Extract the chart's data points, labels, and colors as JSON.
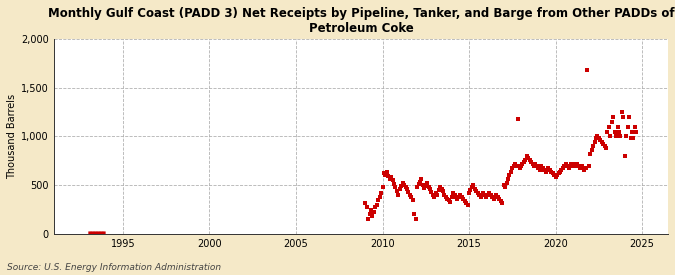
{
  "title": "Monthly Gulf Coast (PADD 3) Net Receipts by Pipeline, Tanker, and Barge from Other PADDs of\nPetroleum Coke",
  "ylabel": "Thousand Barrels",
  "source": "Source: U.S. Energy Information Administration",
  "fig_background_color": "#f5e9c8",
  "plot_background_color": "#ffffff",
  "dot_color": "#cc0000",
  "ylim": [
    0,
    2000
  ],
  "yticks": [
    0,
    500,
    1000,
    1500,
    2000
  ],
  "ytick_labels": [
    "0",
    "500",
    "1,000",
    "1,500",
    "2,000"
  ],
  "xlim_start": 1991.0,
  "xlim_end": 2026.5,
  "xticks": [
    1995,
    2000,
    2005,
    2010,
    2015,
    2020,
    2025
  ],
  "early_data": [
    [
      1993.0,
      8
    ],
    [
      1993.08,
      8
    ],
    [
      1993.17,
      9
    ],
    [
      1993.25,
      8
    ],
    [
      1993.33,
      9
    ],
    [
      1993.42,
      8
    ],
    [
      1993.5,
      9
    ],
    [
      1993.58,
      8
    ],
    [
      1993.67,
      9
    ],
    [
      1993.75,
      8
    ],
    [
      1993.83,
      9
    ],
    [
      1993.92,
      8
    ],
    [
      1994.0,
      8
    ]
  ],
  "scatter_data": [
    [
      2009.0,
      320
    ],
    [
      2009.08,
      280
    ],
    [
      2009.17,
      150
    ],
    [
      2009.25,
      200
    ],
    [
      2009.33,
      250
    ],
    [
      2009.42,
      180
    ],
    [
      2009.5,
      220
    ],
    [
      2009.58,
      280
    ],
    [
      2009.67,
      300
    ],
    [
      2009.75,
      350
    ],
    [
      2009.83,
      380
    ],
    [
      2009.92,
      420
    ],
    [
      2010.0,
      480
    ],
    [
      2010.08,
      620
    ],
    [
      2010.17,
      600
    ],
    [
      2010.25,
      640
    ],
    [
      2010.33,
      590
    ],
    [
      2010.42,
      560
    ],
    [
      2010.5,
      580
    ],
    [
      2010.58,
      550
    ],
    [
      2010.67,
      510
    ],
    [
      2010.75,
      480
    ],
    [
      2010.83,
      440
    ],
    [
      2010.92,
      400
    ],
    [
      2011.0,
      460
    ],
    [
      2011.08,
      490
    ],
    [
      2011.17,
      520
    ],
    [
      2011.25,
      500
    ],
    [
      2011.33,
      480
    ],
    [
      2011.42,
      460
    ],
    [
      2011.5,
      430
    ],
    [
      2011.58,
      400
    ],
    [
      2011.67,
      380
    ],
    [
      2011.75,
      350
    ],
    [
      2011.83,
      200
    ],
    [
      2011.92,
      150
    ],
    [
      2012.0,
      480
    ],
    [
      2012.08,
      510
    ],
    [
      2012.17,
      530
    ],
    [
      2012.25,
      560
    ],
    [
      2012.33,
      500
    ],
    [
      2012.42,
      470
    ],
    [
      2012.5,
      490
    ],
    [
      2012.58,
      520
    ],
    [
      2012.67,
      480
    ],
    [
      2012.75,
      460
    ],
    [
      2012.83,
      430
    ],
    [
      2012.92,
      400
    ],
    [
      2013.0,
      380
    ],
    [
      2013.08,
      420
    ],
    [
      2013.17,
      400
    ],
    [
      2013.25,
      450
    ],
    [
      2013.33,
      480
    ],
    [
      2013.42,
      460
    ],
    [
      2013.5,
      440
    ],
    [
      2013.58,
      400
    ],
    [
      2013.67,
      380
    ],
    [
      2013.75,
      360
    ],
    [
      2013.83,
      350
    ],
    [
      2013.92,
      330
    ],
    [
      2014.0,
      380
    ],
    [
      2014.08,
      420
    ],
    [
      2014.17,
      400
    ],
    [
      2014.25,
      380
    ],
    [
      2014.33,
      360
    ],
    [
      2014.42,
      380
    ],
    [
      2014.5,
      400
    ],
    [
      2014.58,
      380
    ],
    [
      2014.67,
      360
    ],
    [
      2014.75,
      340
    ],
    [
      2014.83,
      320
    ],
    [
      2014.92,
      300
    ],
    [
      2015.0,
      420
    ],
    [
      2015.08,
      450
    ],
    [
      2015.17,
      480
    ],
    [
      2015.25,
      500
    ],
    [
      2015.33,
      460
    ],
    [
      2015.42,
      440
    ],
    [
      2015.5,
      420
    ],
    [
      2015.58,
      400
    ],
    [
      2015.67,
      380
    ],
    [
      2015.75,
      400
    ],
    [
      2015.83,
      420
    ],
    [
      2015.92,
      400
    ],
    [
      2016.0,
      380
    ],
    [
      2016.08,
      400
    ],
    [
      2016.17,
      420
    ],
    [
      2016.25,
      400
    ],
    [
      2016.33,
      380
    ],
    [
      2016.42,
      360
    ],
    [
      2016.5,
      380
    ],
    [
      2016.58,
      400
    ],
    [
      2016.67,
      380
    ],
    [
      2016.75,
      360
    ],
    [
      2016.83,
      340
    ],
    [
      2016.92,
      320
    ],
    [
      2017.0,
      500
    ],
    [
      2017.08,
      480
    ],
    [
      2017.17,
      520
    ],
    [
      2017.25,
      560
    ],
    [
      2017.33,
      600
    ],
    [
      2017.42,
      640
    ],
    [
      2017.5,
      680
    ],
    [
      2017.58,
      700
    ],
    [
      2017.67,
      720
    ],
    [
      2017.75,
      700
    ],
    [
      2017.83,
      1180
    ],
    [
      2017.92,
      680
    ],
    [
      2018.0,
      700
    ],
    [
      2018.08,
      720
    ],
    [
      2018.17,
      740
    ],
    [
      2018.25,
      760
    ],
    [
      2018.33,
      800
    ],
    [
      2018.42,
      780
    ],
    [
      2018.5,
      760
    ],
    [
      2018.58,
      740
    ],
    [
      2018.67,
      720
    ],
    [
      2018.75,
      700
    ],
    [
      2018.83,
      720
    ],
    [
      2018.92,
      700
    ],
    [
      2019.0,
      680
    ],
    [
      2019.08,
      660
    ],
    [
      2019.17,
      700
    ],
    [
      2019.25,
      680
    ],
    [
      2019.33,
      660
    ],
    [
      2019.42,
      640
    ],
    [
      2019.5,
      660
    ],
    [
      2019.58,
      680
    ],
    [
      2019.67,
      660
    ],
    [
      2019.75,
      640
    ],
    [
      2019.83,
      620
    ],
    [
      2019.92,
      600
    ],
    [
      2020.0,
      580
    ],
    [
      2020.08,
      600
    ],
    [
      2020.17,
      620
    ],
    [
      2020.25,
      640
    ],
    [
      2020.33,
      660
    ],
    [
      2020.42,
      680
    ],
    [
      2020.5,
      700
    ],
    [
      2020.58,
      720
    ],
    [
      2020.67,
      700
    ],
    [
      2020.75,
      680
    ],
    [
      2020.83,
      700
    ],
    [
      2020.92,
      720
    ],
    [
      2021.0,
      700
    ],
    [
      2021.08,
      720
    ],
    [
      2021.17,
      700
    ],
    [
      2021.25,
      720
    ],
    [
      2021.33,
      700
    ],
    [
      2021.42,
      680
    ],
    [
      2021.5,
      700
    ],
    [
      2021.58,
      680
    ],
    [
      2021.67,
      660
    ],
    [
      2021.75,
      680
    ],
    [
      2021.83,
      1680
    ],
    [
      2021.92,
      700
    ],
    [
      2022.0,
      820
    ],
    [
      2022.08,
      860
    ],
    [
      2022.17,
      900
    ],
    [
      2022.25,
      940
    ],
    [
      2022.33,
      980
    ],
    [
      2022.42,
      1000
    ],
    [
      2022.5,
      980
    ],
    [
      2022.58,
      960
    ],
    [
      2022.67,
      940
    ],
    [
      2022.75,
      920
    ],
    [
      2022.83,
      900
    ],
    [
      2022.92,
      880
    ],
    [
      2023.0,
      1050
    ],
    [
      2023.08,
      1100
    ],
    [
      2023.17,
      1000
    ],
    [
      2023.25,
      1150
    ],
    [
      2023.33,
      1200
    ],
    [
      2023.42,
      1050
    ],
    [
      2023.5,
      1000
    ],
    [
      2023.58,
      1100
    ],
    [
      2023.67,
      1050
    ],
    [
      2023.75,
      1000
    ],
    [
      2023.83,
      1250
    ],
    [
      2023.92,
      1200
    ],
    [
      2024.0,
      800
    ],
    [
      2024.08,
      1000
    ],
    [
      2024.17,
      1100
    ],
    [
      2024.25,
      1200
    ],
    [
      2024.33,
      980
    ],
    [
      2024.42,
      1050
    ],
    [
      2024.5,
      980
    ],
    [
      2024.58,
      1100
    ],
    [
      2024.67,
      1050
    ]
  ]
}
